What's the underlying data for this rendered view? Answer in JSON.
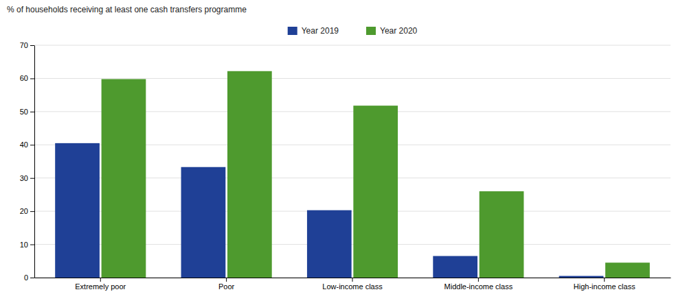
{
  "chart_data": {
    "type": "bar",
    "ylabel": "% of households receiving at least one cash transfers programme",
    "categories": [
      "Extremely poor",
      "Poor",
      "Low-income class",
      "Middle-income class",
      "High-income class"
    ],
    "series": [
      {
        "name": "Year 2019",
        "color": "#1f4096",
        "values": [
          40.5,
          33.3,
          20.3,
          6.5,
          0.5
        ]
      },
      {
        "name": "Year 2020",
        "color": "#4e9a2e",
        "values": [
          59.8,
          62.2,
          51.8,
          26.0,
          4.5
        ]
      }
    ],
    "ylim": [
      0,
      70
    ],
    "yticks": [
      0,
      10,
      20,
      30,
      40,
      50,
      60,
      70
    ],
    "grid": true,
    "legend": "upper center"
  }
}
